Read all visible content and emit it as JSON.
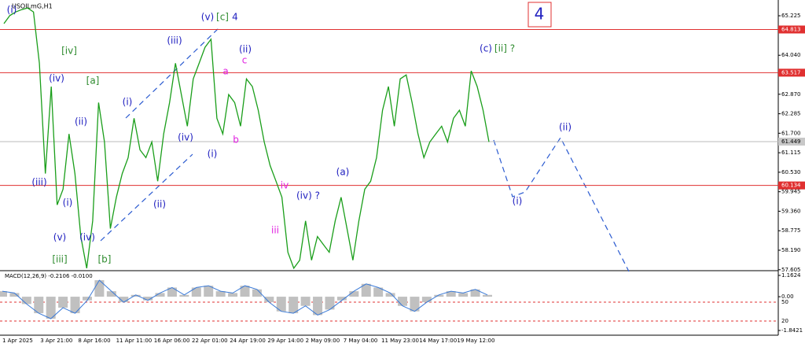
{
  "chart_data": {
    "type": "line",
    "symbol": "USOILmG,H1",
    "series": [
      {
        "name": "USOILmG",
        "color": "#1a9e1a",
        "values": [
          64.99,
          65.23,
          65.34,
          65.41,
          65.46,
          65.34,
          63.8,
          60.49,
          63.1,
          59.55,
          60.02,
          61.68,
          60.49,
          58.6,
          57.65,
          59.07,
          62.62,
          61.44,
          58.84,
          59.78,
          60.49,
          60.97,
          62.15,
          61.2,
          60.97,
          61.44,
          60.26,
          61.68,
          62.62,
          63.8,
          62.86,
          61.91,
          63.33,
          63.8,
          64.28,
          64.52,
          62.15,
          61.68,
          62.86,
          62.62,
          61.91,
          63.33,
          63.1,
          62.39,
          61.44,
          60.73,
          60.26,
          59.78,
          58.13,
          57.65,
          57.89,
          59.07,
          57.89,
          58.6,
          58.36,
          58.13,
          59.07,
          59.78,
          58.84,
          57.89,
          59.07,
          60.02,
          60.26,
          60.97,
          62.39,
          63.1,
          61.91,
          63.33,
          63.45,
          62.62,
          61.68,
          60.97,
          61.44,
          61.68,
          61.91,
          61.44,
          62.15,
          62.39,
          61.91,
          63.57,
          63.1,
          62.39,
          61.44
        ]
      }
    ],
    "ylim": [
      57.6,
      65.58
    ],
    "yticks": [
      {
        "value": 65.225,
        "label": "65.225"
      },
      {
        "value": 64.04,
        "label": "64.040"
      },
      {
        "value": 62.87,
        "label": "62.870"
      },
      {
        "value": 62.285,
        "label": "62.285"
      },
      {
        "value": 61.7,
        "label": "61.700"
      },
      {
        "value": 61.115,
        "label": "61.115"
      },
      {
        "value": 60.53,
        "label": "60.530"
      },
      {
        "value": 59.945,
        "label": "59.945"
      },
      {
        "value": 59.36,
        "label": "59.360"
      },
      {
        "value": 58.775,
        "label": "58.775"
      },
      {
        "value": 58.19,
        "label": "58.190"
      },
      {
        "value": 57.605,
        "label": "57.605"
      }
    ],
    "levels": [
      {
        "value": 64.813,
        "label": "64.813"
      },
      {
        "value": 63.517,
        "label": "63.517"
      },
      {
        "value": 60.134,
        "label": "60.134"
      }
    ],
    "level_color": "#e03030",
    "current_price": {
      "value": 61.449,
      "label": "61.449"
    },
    "x_labels": [
      "1 Apr 2025",
      "3 Apr 21:00",
      "8 Apr 16:00",
      "11 Apr 11:00",
      "16 Apr 06:00",
      "22 Apr 01:00",
      "24 Apr 19:00",
      "29 Apr 14:00",
      "2 May 09:00",
      "7 May 04:00",
      "11 May 23:00",
      "14 May 17:00",
      "19 May 12:00"
    ],
    "annotations": [
      {
        "text": "(i)",
        "color": "#2020c0"
      },
      {
        "text": "[iv]",
        "color": "#2e8b2e"
      },
      {
        "text": "(iv)",
        "color": "#2020c0"
      },
      {
        "text": "[a]",
        "color": "#2e8b2e"
      },
      {
        "text": "(ii)",
        "color": "#2020c0"
      },
      {
        "text": "(iii)",
        "color": "#2020c0"
      },
      {
        "text": "(i)",
        "color": "#2020c0"
      },
      {
        "text": "(v)",
        "color": "#2020c0"
      },
      {
        "text": "(iv)",
        "color": "#2020c0"
      },
      {
        "text": "[iii]",
        "color": "#2e8b2e"
      },
      {
        "text": "[b]",
        "color": "#2e8b2e"
      },
      {
        "text": "(i)",
        "color": "#2020c0"
      },
      {
        "text": "(iii)",
        "color": "#2020c0"
      },
      {
        "text": "(iv)",
        "color": "#2020c0"
      },
      {
        "text": "(ii)",
        "color": "#2020c0"
      },
      {
        "text": "(i)",
        "color": "#2020c0"
      },
      {
        "text": "(v)",
        "color": "#2020c0"
      },
      {
        "text": "[c]",
        "color": "#2e8b2e"
      },
      {
        "text": "4",
        "color": "#2020c0"
      },
      {
        "text": "(ii)",
        "color": "#2020c0"
      },
      {
        "text": "c",
        "color": "#e020e0"
      },
      {
        "text": "a",
        "color": "#e020e0"
      },
      {
        "text": "b",
        "color": "#e020e0"
      },
      {
        "text": "iv",
        "color": "#e020e0"
      },
      {
        "text": "iii",
        "color": "#e020e0"
      },
      {
        "text": "(iv) ?",
        "color": "#2020c0"
      },
      {
        "text": "(a)",
        "color": "#2020c0"
      },
      {
        "text": "(c)",
        "color": "#2020c0"
      },
      {
        "text": "[ii] ?",
        "color": "#2e8b2e"
      },
      {
        "text": "(ii)",
        "color": "#2020c0"
      },
      {
        "text": "(i)",
        "color": "#2020c0"
      }
    ],
    "badge": "4",
    "macd": {
      "label": "MACD(12,26,9) -0.2106 -0.0100",
      "values": [
        0.3,
        0.2,
        -0.4,
        -0.9,
        -1.2,
        -0.6,
        -0.9,
        -0.2,
        0.9,
        0.3,
        -0.3,
        0.1,
        -0.2,
        0.2,
        0.5,
        0.1,
        0.5,
        0.6,
        0.3,
        0.2,
        0.6,
        0.4,
        -0.3,
        -0.8,
        -0.9,
        -0.5,
        -1.0,
        -0.7,
        -0.2,
        0.3,
        0.7,
        0.5,
        0.2,
        -0.5,
        -0.8,
        -0.3,
        0.1,
        0.3,
        0.2,
        0.4,
        0.1
      ],
      "ylim": [
        -1.8421,
        1.1624
      ],
      "yticks": [
        {
          "value": 1.1624,
          "label": "1.1624"
        },
        {
          "value": 0,
          "label": "0.00"
        },
        {
          "value": -1.8421,
          "label": "-1.8421"
        }
      ],
      "levels": [
        50,
        20
      ]
    }
  }
}
